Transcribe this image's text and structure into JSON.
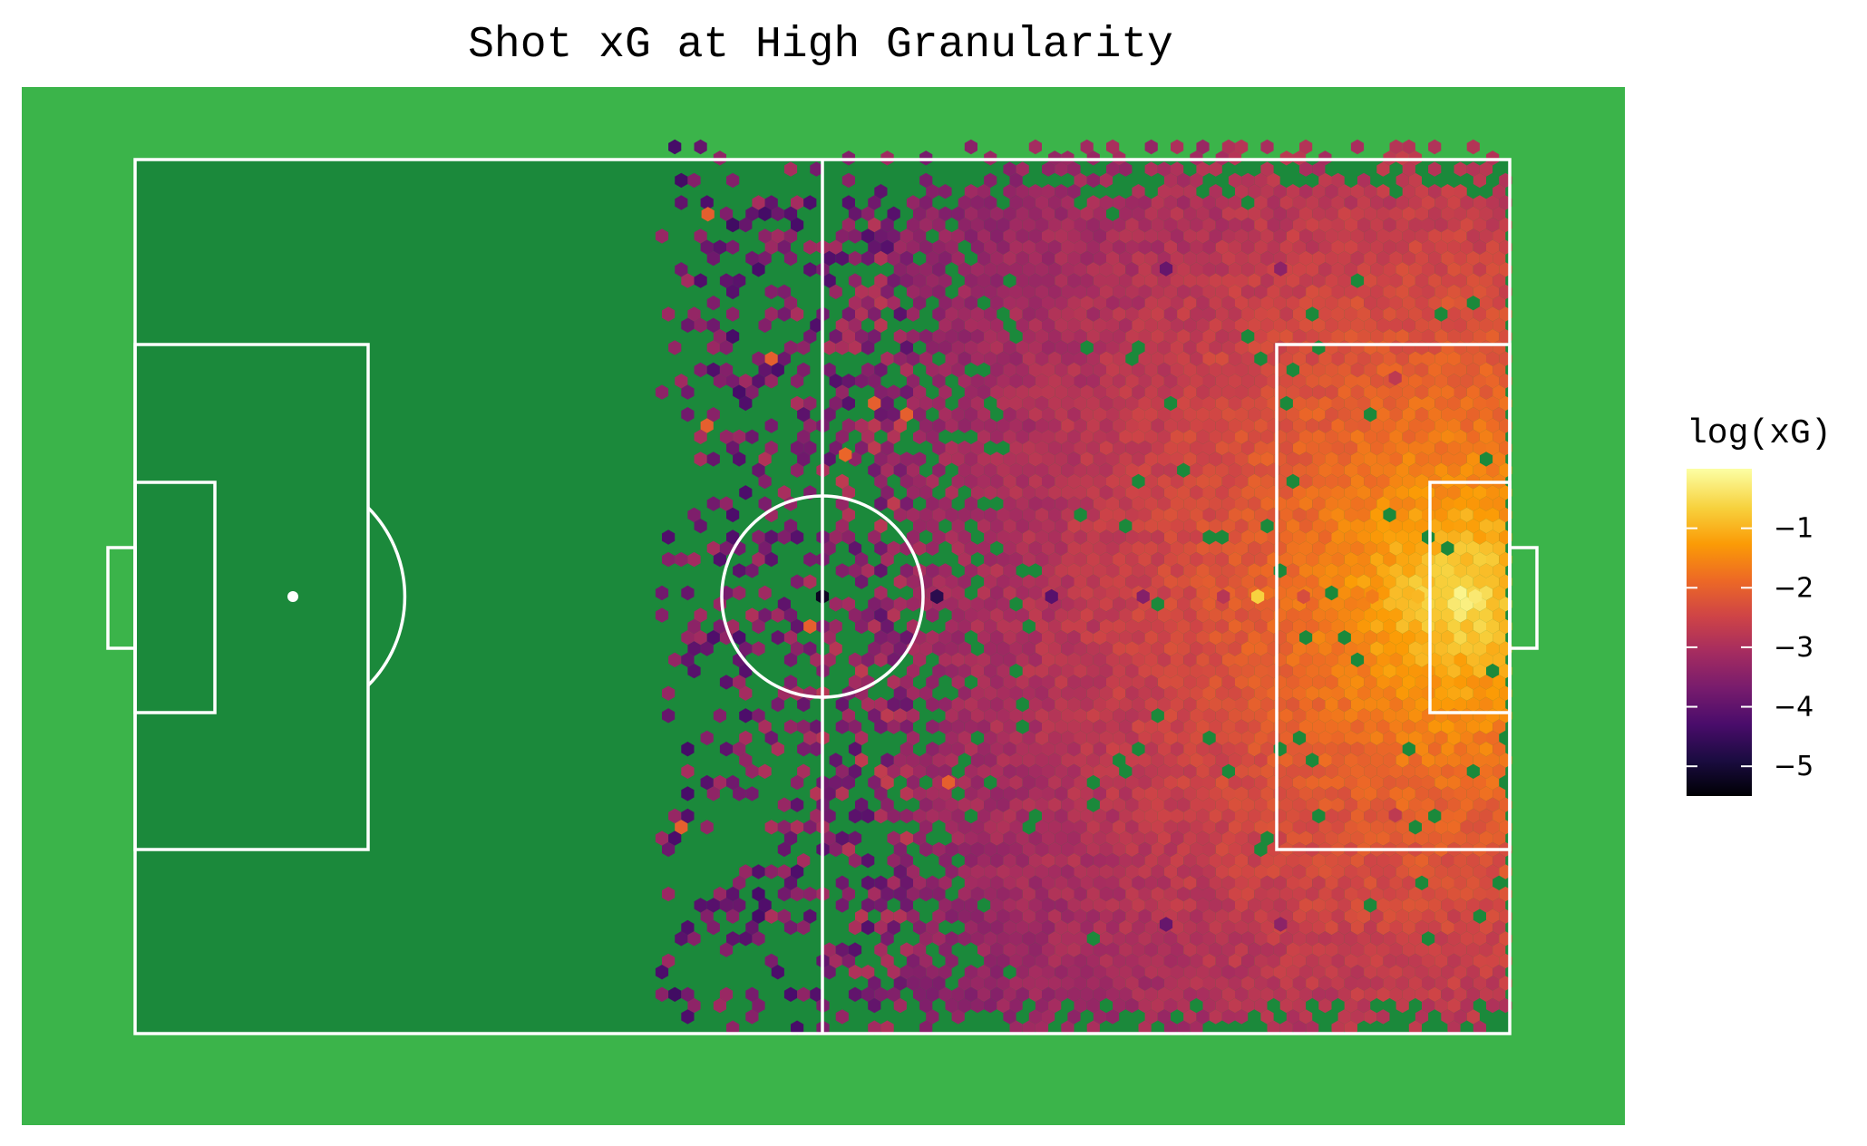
{
  "chart_data": {
    "type": "heatmap",
    "subtype": "hexbin",
    "title": "Shot xG at High Granularity",
    "xlabel": "",
    "ylabel": "",
    "xlim": [
      0,
      120
    ],
    "ylim": [
      0,
      80
    ],
    "grid": false,
    "legend_placement": "right",
    "legend": {
      "title": "log(xG)",
      "ticks": [
        -1,
        -2,
        -3,
        -4,
        -5
      ],
      "tick_labels": [
        "−1",
        "−2",
        "−3",
        "−4",
        "−5"
      ],
      "range": [
        -5.5,
        0
      ],
      "colormap": [
        "#000004",
        "#1b0c41",
        "#4a0c6b",
        "#781c6d",
        "#a52c60",
        "#cf4446",
        "#ed6925",
        "#fb9b06",
        "#f7d13d",
        "#fcffa4"
      ]
    },
    "colors": {
      "background": "#3bb44a",
      "pitch": "#1b893b",
      "lines": "#ffffff"
    },
    "x_domain": "pitch length coordinates (0-120), shots attack right goal at x=120",
    "y_domain": "pitch width coordinates (0-80)",
    "density_notes": "log(xG) peaks near -0.2 directly in front of the right goal and falls to about -5.5 near halfway; bins are sparse beyond x about 60",
    "sample_points": [
      {
        "x": 117,
        "y": 40,
        "value": -0.3
      },
      {
        "x": 112,
        "y": 40,
        "value": -0.9
      },
      {
        "x": 108,
        "y": 40,
        "value": -1.6
      },
      {
        "x": 102,
        "y": 40,
        "value": -2.3
      },
      {
        "x": 98,
        "y": 40,
        "value": -0.6
      },
      {
        "x": 95,
        "y": 40,
        "value": -2.8
      },
      {
        "x": 88,
        "y": 40,
        "value": -3.5
      },
      {
        "x": 80,
        "y": 40,
        "value": -4.1
      },
      {
        "x": 70,
        "y": 40,
        "value": -4.7
      },
      {
        "x": 60,
        "y": 40,
        "value": -5.2
      },
      {
        "x": 110,
        "y": 20,
        "value": -2.7
      },
      {
        "x": 110,
        "y": 60,
        "value": -2.7
      },
      {
        "x": 100,
        "y": 10,
        "value": -3.4
      },
      {
        "x": 100,
        "y": 70,
        "value": -3.4
      },
      {
        "x": 90,
        "y": 10,
        "value": -3.9
      },
      {
        "x": 90,
        "y": 70,
        "value": -3.9
      },
      {
        "x": 50,
        "y": 5,
        "value": -2.0
      },
      {
        "x": 62,
        "y": 27,
        "value": -1.9
      },
      {
        "x": 71,
        "y": 57,
        "value": -2.0
      }
    ]
  }
}
